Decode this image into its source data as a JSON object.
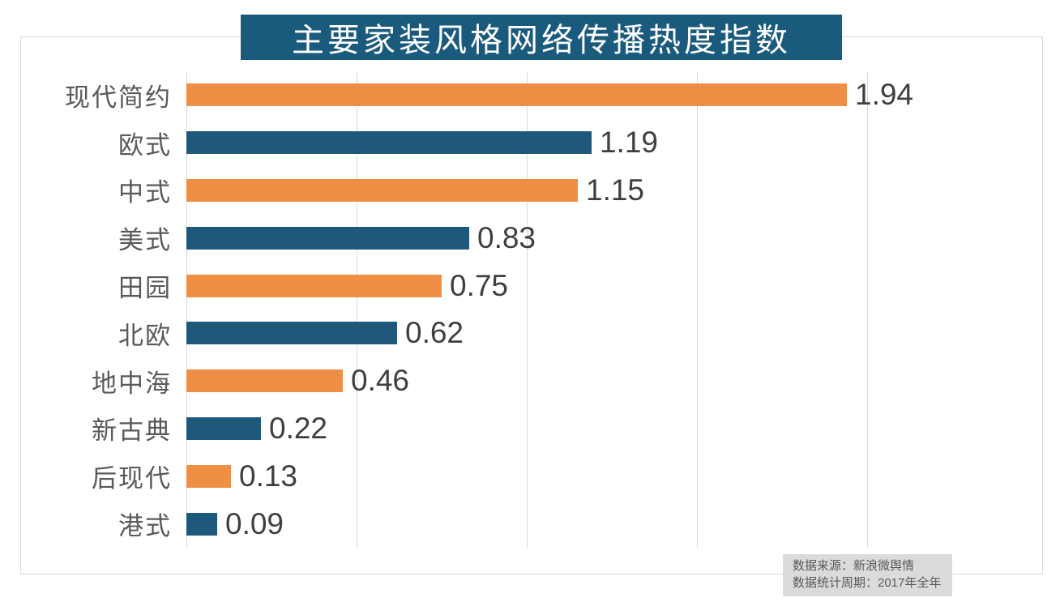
{
  "title_banner": {
    "text": "主要家装风格网络传播热度指数",
    "bg_color": "#1a5a7d",
    "text_color": "#ffffff"
  },
  "chart_data": {
    "type": "bar",
    "orientation": "horizontal",
    "title": "主要家装风格网络传播热度指数",
    "categories": [
      "现代简约",
      "欧式",
      "中式",
      "美式",
      "田园",
      "北欧",
      "地中海",
      "新古典",
      "后现代",
      "港式"
    ],
    "values": [
      1.94,
      1.19,
      1.15,
      0.83,
      0.75,
      0.62,
      0.46,
      0.22,
      0.13,
      0.09
    ],
    "value_labels": [
      "1.94",
      "1.19",
      "1.15",
      "0.83",
      "0.75",
      "0.62",
      "0.46",
      "0.22",
      "0.13",
      "0.09"
    ],
    "xlim": [
      0,
      2.0
    ],
    "gridline_interval": 0.5,
    "grid": "vertical-only",
    "legend": "none",
    "bar_colors_alternating": [
      "#ee8f45",
      "#1e587a"
    ],
    "category_label_color": "#595959",
    "value_label_color": "#3f3f3f",
    "gridline_color": "#d9d9d9"
  },
  "footnote": {
    "source_line": "数据来源：新浪微舆情",
    "period_line": "数据统计周期：2017年全年"
  }
}
